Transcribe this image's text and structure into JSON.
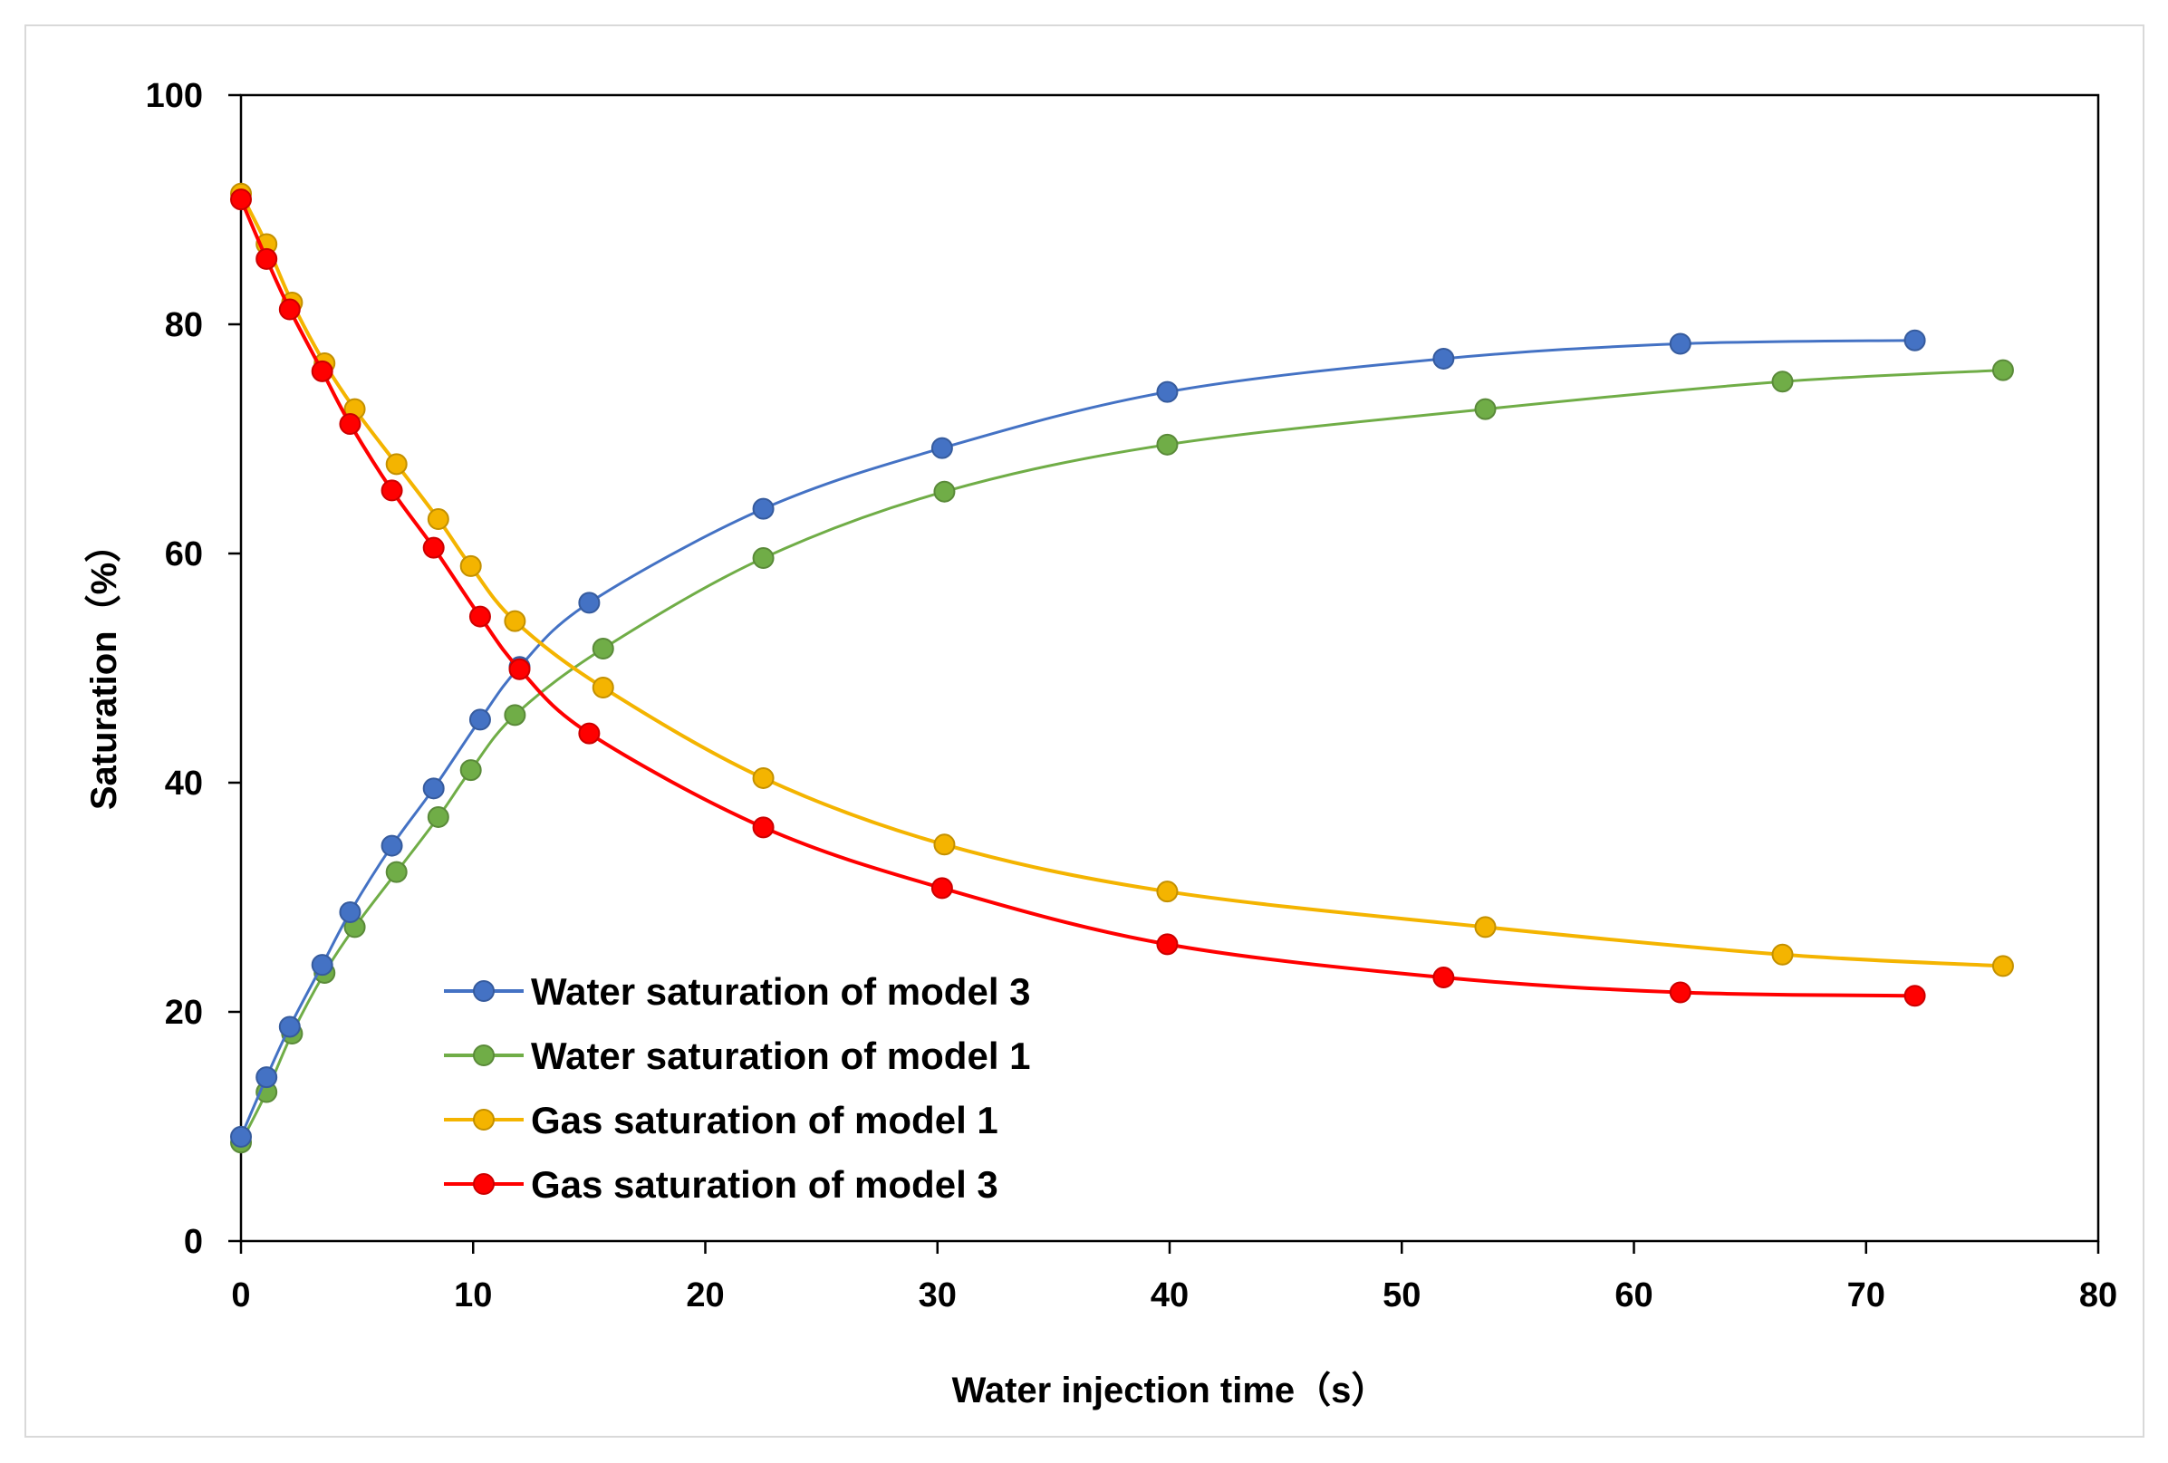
{
  "chart_data": {
    "type": "line",
    "title": "",
    "xlabel": "Water injection time（s）",
    "ylabel": "Saturation（%）",
    "xlim": [
      0,
      80
    ],
    "ylim": [
      0,
      100
    ],
    "x_ticks": [
      "0",
      "10",
      "20",
      "30",
      "40",
      "50",
      "60",
      "70",
      "80"
    ],
    "y_ticks": [
      "0",
      "20",
      "40",
      "60",
      "80",
      "100"
    ],
    "grid": false,
    "legend_position": "bottom-center",
    "series": [
      {
        "name": "Water saturation of model 3",
        "color": "#4472c4",
        "x": [
          0,
          1.1,
          2.1,
          3.5,
          4.7,
          6.5,
          8.3,
          10.3,
          12.0,
          15.0,
          22.5,
          30.2,
          39.9,
          51.8,
          62.0,
          72.1
        ],
        "y": [
          9.1,
          14.3,
          18.7,
          24.1,
          28.7,
          34.5,
          39.5,
          45.5,
          50.1,
          55.7,
          63.9,
          69.2,
          74.1,
          77.0,
          78.3,
          78.6
        ]
      },
      {
        "name": "Water saturation of model 1",
        "color": "#70ad47",
        "x": [
          0,
          1.1,
          2.2,
          3.6,
          4.9,
          6.7,
          8.5,
          9.9,
          11.8,
          15.6,
          22.5,
          30.3,
          39.9,
          53.6,
          66.4,
          75.9
        ],
        "y": [
          8.6,
          13.0,
          18.1,
          23.4,
          27.4,
          32.2,
          37.0,
          41.1,
          45.9,
          51.7,
          59.6,
          65.4,
          69.5,
          72.6,
          75.0,
          76.0
        ]
      },
      {
        "name": "Gas saturation of model 1",
        "color": "#f4b400",
        "x": [
          0,
          1.1,
          2.2,
          3.6,
          4.9,
          6.7,
          8.5,
          9.9,
          11.8,
          15.6,
          22.5,
          30.3,
          39.9,
          53.6,
          66.4,
          75.9
        ],
        "y": [
          91.4,
          87.0,
          81.9,
          76.6,
          72.6,
          67.8,
          63.0,
          58.9,
          54.1,
          48.3,
          40.4,
          34.6,
          30.5,
          27.4,
          25.0,
          24.0
        ]
      },
      {
        "name": "Gas saturation of model 3",
        "color": "#ff0000",
        "x": [
          0,
          1.1,
          2.1,
          3.5,
          4.7,
          6.5,
          8.3,
          10.3,
          12.0,
          15.0,
          22.5,
          30.2,
          39.9,
          51.8,
          62.0,
          72.1
        ],
        "y": [
          90.9,
          85.7,
          81.3,
          75.9,
          71.3,
          65.5,
          60.5,
          54.5,
          49.9,
          44.3,
          36.1,
          30.8,
          25.9,
          23.0,
          21.7,
          21.4
        ]
      }
    ]
  }
}
